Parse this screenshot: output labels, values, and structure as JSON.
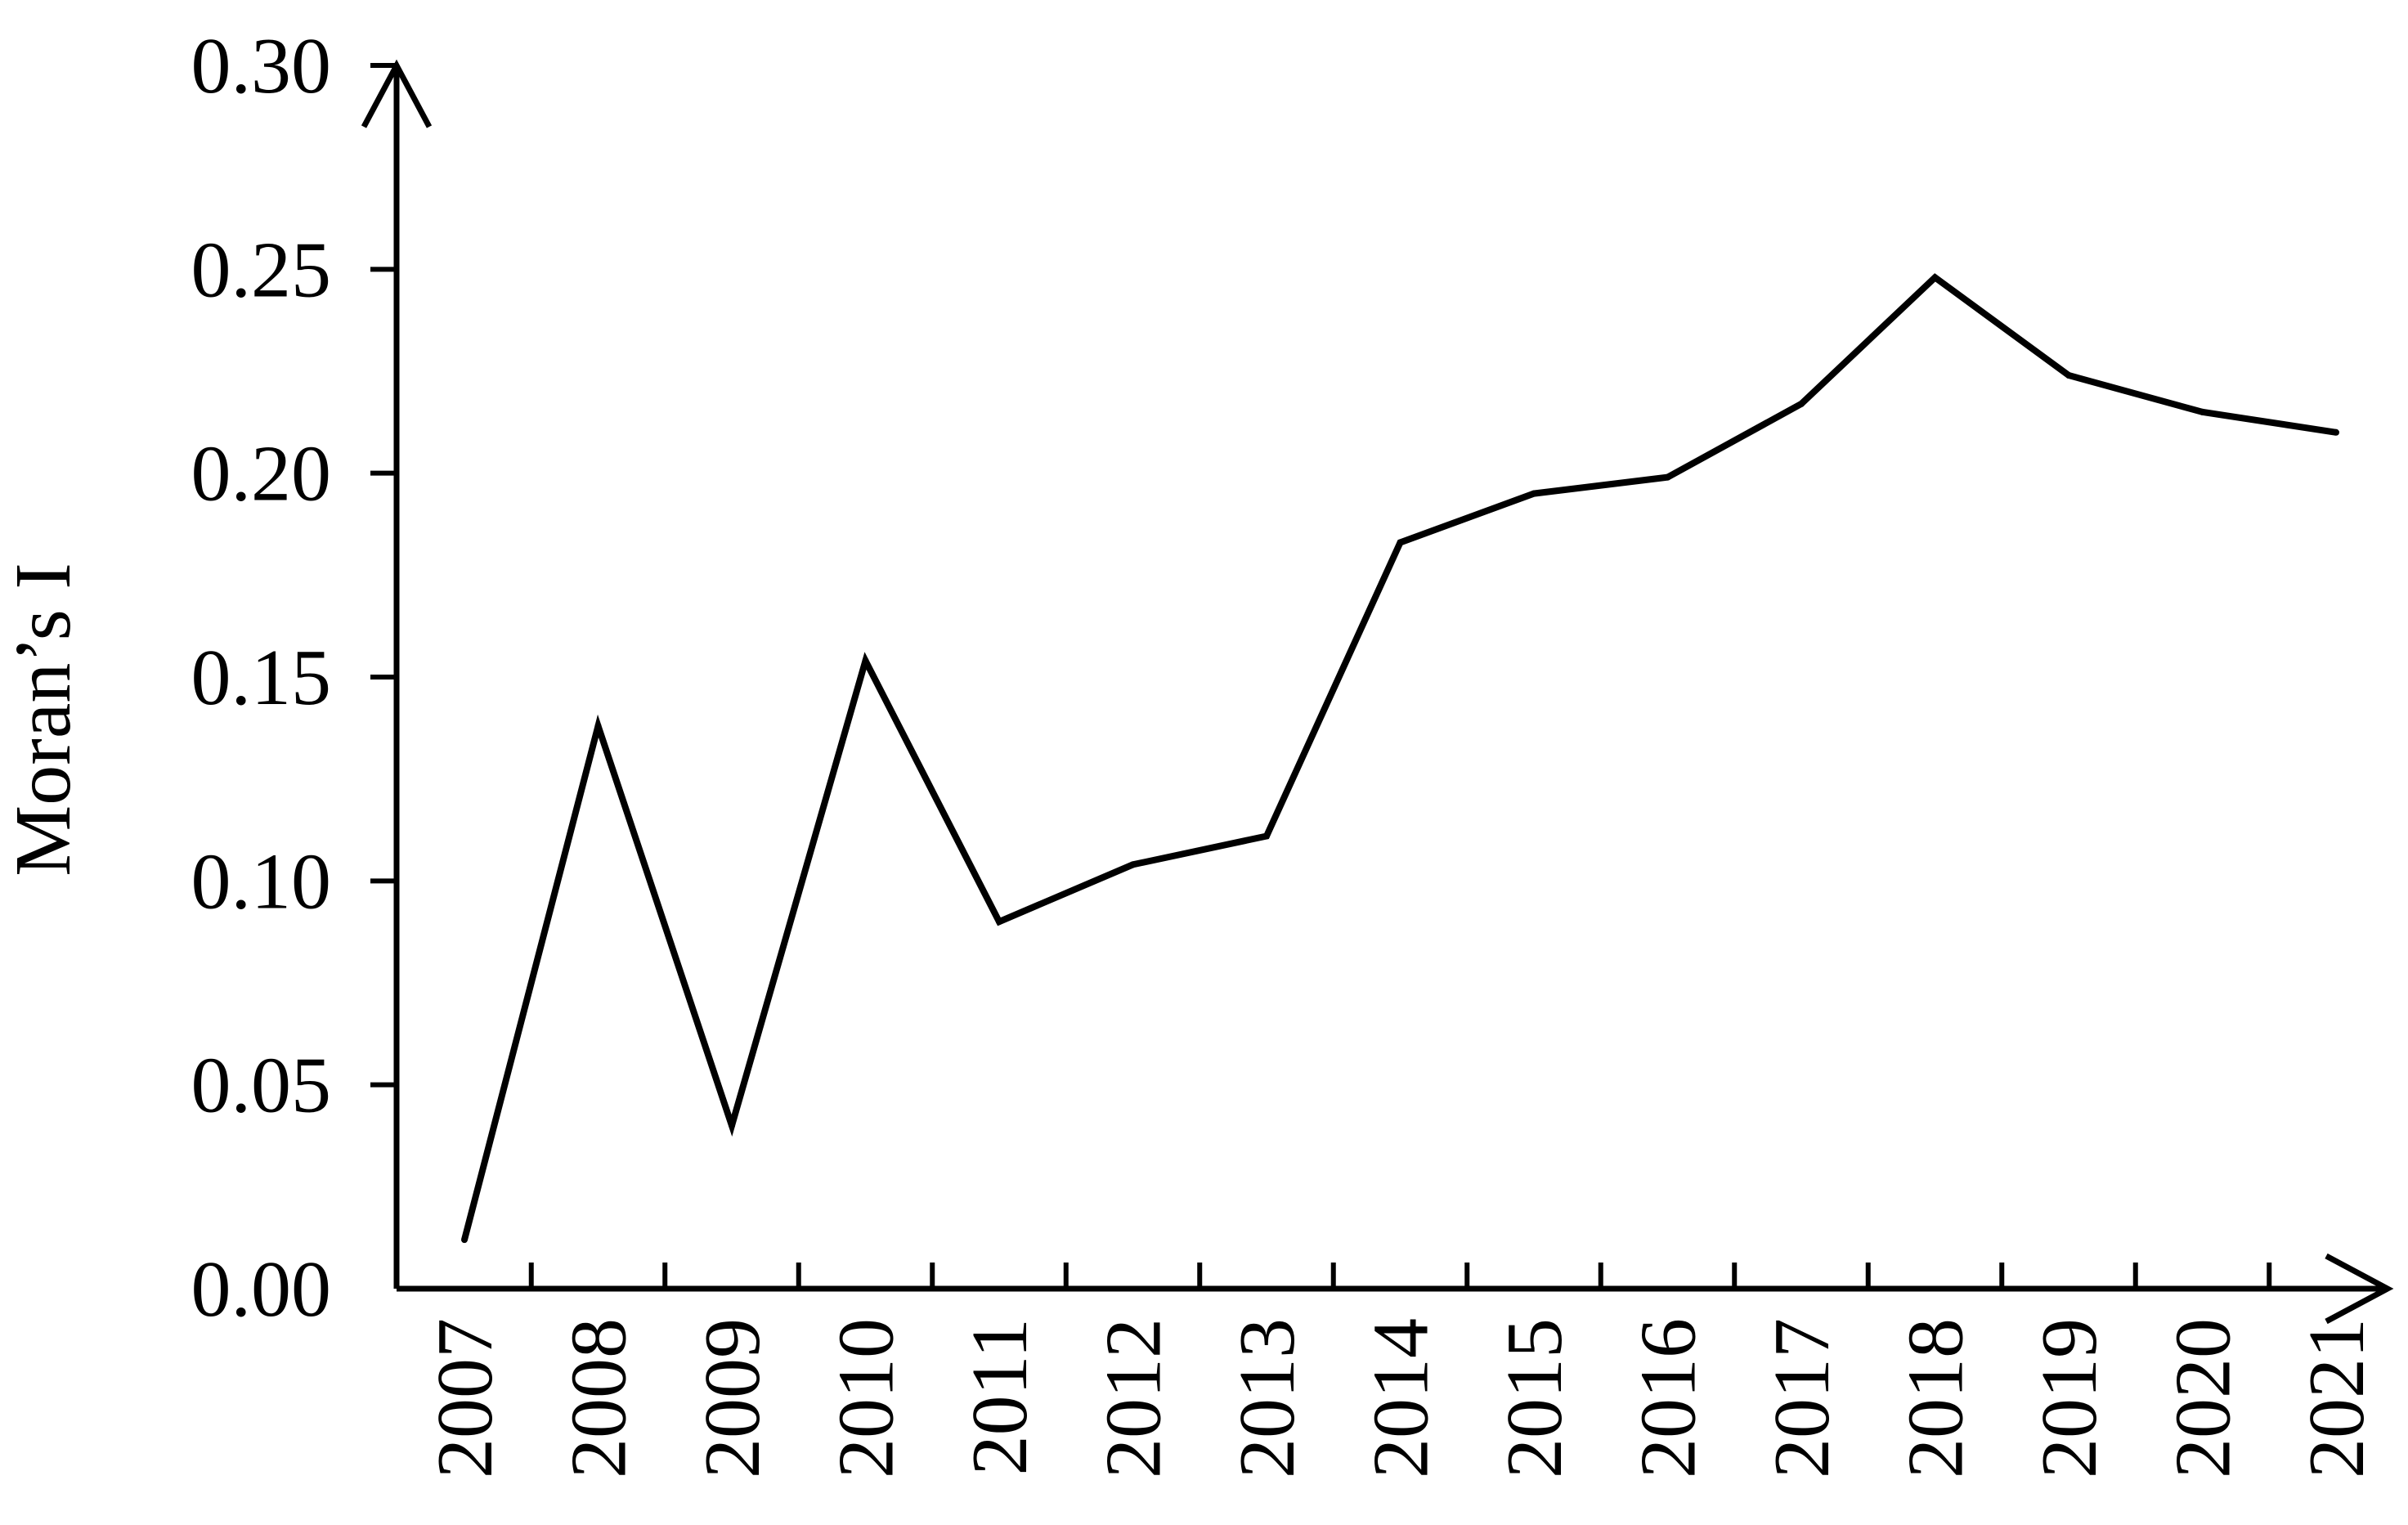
{
  "chart_data": {
    "type": "line",
    "title": "",
    "xlabel": "",
    "ylabel": "Moran’s I",
    "ylim": [
      0,
      0.3
    ],
    "y_ticks": [
      "0.00",
      "0.05",
      "0.10",
      "0.15",
      "0.20",
      "0.25",
      "0.30"
    ],
    "categories": [
      "2007",
      "2008",
      "2009",
      "2010",
      "2011",
      "2012",
      "2013",
      "2014",
      "2015",
      "2016",
      "2017",
      "2018",
      "2019",
      "2020",
      "2021"
    ],
    "series": [
      {
        "values": [
          0.012,
          0.138,
          0.04,
          0.154,
          0.09,
          0.104,
          0.111,
          0.183,
          0.195,
          0.199,
          0.217,
          0.248,
          0.224,
          0.215,
          0.21
        ]
      }
    ],
    "grid": false,
    "legend": "none",
    "line_color": "#000000"
  }
}
